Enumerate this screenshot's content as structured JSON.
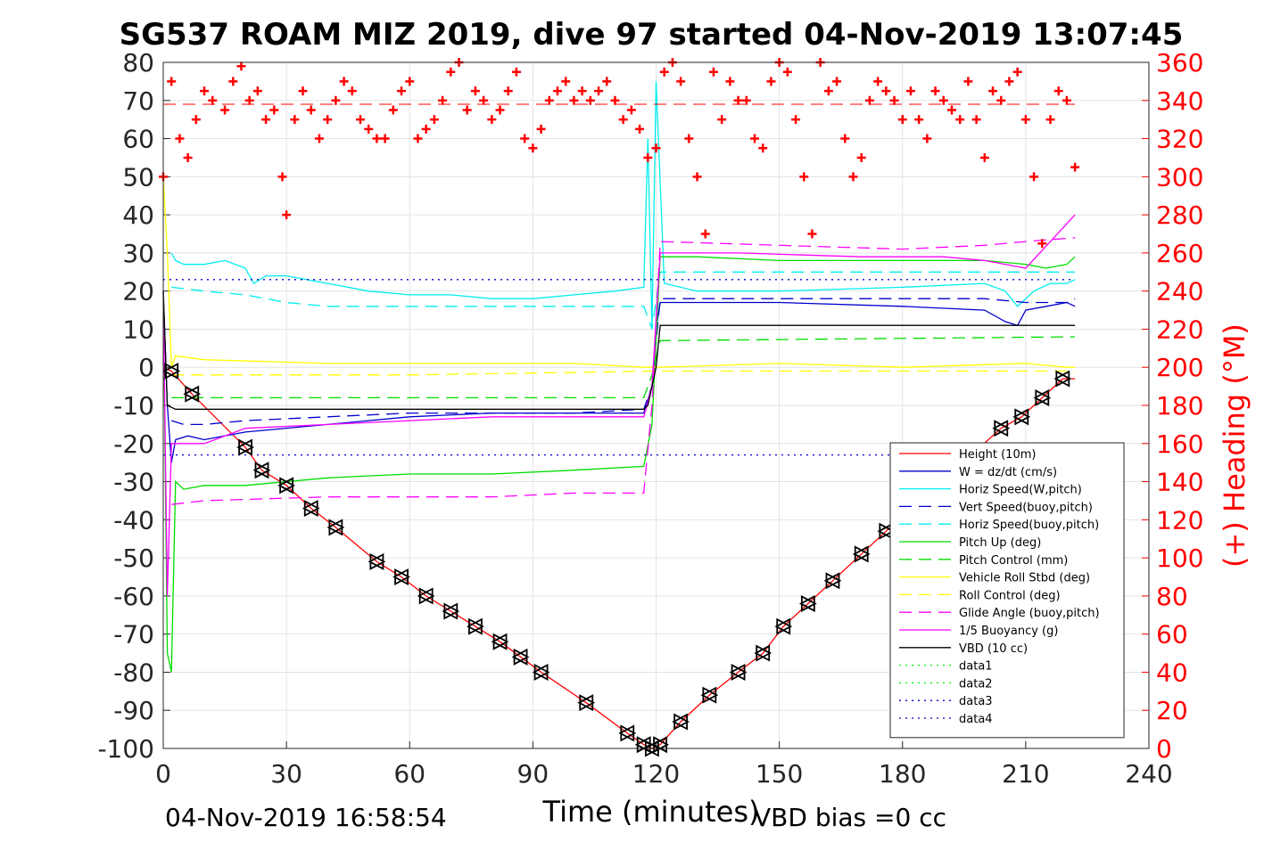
{
  "chart_data": {
    "type": "line",
    "title": "SG537 ROAM MIZ 2019, dive 97 started 04-Nov-2019 13:07:45",
    "xlabel": "Time (minutes)",
    "ylabel_right": "(+) Heading (°M)",
    "xlim": [
      0,
      240
    ],
    "ylim": [
      -100,
      80
    ],
    "ylim_right": [
      0,
      360
    ],
    "x_ticks": [
      0,
      30,
      60,
      90,
      120,
      150,
      180,
      210,
      240
    ],
    "y_ticks": [
      80,
      70,
      60,
      50,
      40,
      30,
      20,
      10,
      0,
      -10,
      -20,
      -30,
      -40,
      -50,
      -60,
      -70,
      -80,
      -90,
      -100
    ],
    "y_ticks_right": [
      360,
      340,
      320,
      300,
      280,
      260,
      240,
      220,
      200,
      180,
      160,
      140,
      120,
      100,
      80,
      60,
      40,
      20,
      0
    ],
    "grid": true,
    "legend_position": "bottom-right",
    "footer_left": "04-Nov-2019 16:58:54",
    "footer_right": "VBD bias =0 cc",
    "series": [
      {
        "name": "Height (10m)",
        "color": "#ff0000",
        "dash": "solid",
        "x": [
          0,
          2,
          7,
          20,
          24,
          30,
          36,
          42,
          52,
          58,
          64,
          70,
          76,
          82,
          87,
          92,
          103,
          113,
          117,
          119,
          121,
          126,
          133,
          140,
          146,
          151,
          157,
          163,
          170,
          176,
          204,
          209,
          214,
          219,
          222
        ],
        "y": [
          0,
          -1,
          -7,
          -21,
          -27,
          -31,
          -37,
          -42,
          -51,
          -55,
          -60,
          -64,
          -68,
          -72,
          -76,
          -80,
          -88,
          -96,
          -99,
          -100,
          -99,
          -93,
          -86,
          -80,
          -75,
          -68,
          -62,
          -56,
          -49,
          -43,
          -16,
          -13,
          -8,
          -3,
          -3
        ]
      },
      {
        "name": "W = dz/dt (cm/s)",
        "color": "#0000cc",
        "dash": "solid",
        "x": [
          0,
          1,
          2,
          3,
          6,
          10,
          20,
          40,
          60,
          80,
          100,
          117,
          119,
          120,
          121,
          130,
          150,
          180,
          200,
          205,
          208,
          210,
          215,
          220,
          222
        ],
        "y": [
          20,
          -10,
          -25,
          -19,
          -18,
          -19,
          -17,
          -15,
          -13,
          -12,
          -12,
          -12,
          -5,
          10,
          17,
          17,
          17,
          16,
          15,
          12,
          11,
          15,
          16,
          17,
          16
        ]
      },
      {
        "name": "Horiz Speed(W,pitch)",
        "color": "#00eeee",
        "dash": "solid",
        "x": [
          2,
          3,
          5,
          10,
          15,
          20,
          22,
          25,
          30,
          40,
          50,
          60,
          70,
          80,
          90,
          100,
          110,
          117,
          118,
          119,
          120,
          122,
          130,
          150,
          180,
          200,
          205,
          208,
          212,
          216,
          220,
          222
        ],
        "y": [
          30,
          28,
          27,
          27,
          28,
          26,
          22,
          24,
          24,
          22,
          20,
          19,
          19,
          18,
          18,
          19,
          20,
          21,
          60,
          10,
          75,
          22,
          20,
          20,
          21,
          22,
          20,
          16,
          20,
          22,
          22,
          23
        ]
      },
      {
        "name": "Vert Speed(buoy,pitch)",
        "color": "#0000cc",
        "dash": "dashed",
        "x": [
          2,
          5,
          10,
          20,
          40,
          60,
          80,
          100,
          117,
          119,
          121,
          130,
          150,
          180,
          200,
          210,
          220,
          222
        ],
        "y": [
          -14,
          -15,
          -15,
          -14,
          -13,
          -12,
          -12,
          -12,
          -11,
          -5,
          18,
          18,
          18,
          18,
          18,
          17,
          17,
          18
        ]
      },
      {
        "name": "Horiz Speed(buoy,pitch)",
        "color": "#00eeee",
        "dash": "dashed",
        "x": [
          2,
          10,
          20,
          30,
          40,
          60,
          80,
          100,
          117,
          119,
          121,
          140,
          160,
          180,
          200,
          210,
          220,
          222
        ],
        "y": [
          21,
          20,
          19,
          17,
          16,
          16,
          16,
          16,
          16,
          10,
          25,
          25,
          25,
          25,
          25,
          25,
          25,
          25
        ]
      },
      {
        "name": "Pitch Up (deg)",
        "color": "#00dd00",
        "dash": "solid",
        "x": [
          0,
          1,
          2,
          3,
          5,
          10,
          20,
          40,
          60,
          80,
          100,
          117,
          119,
          121,
          130,
          150,
          180,
          200,
          210,
          215,
          220,
          222
        ],
        "y": [
          20,
          -75,
          -80,
          -30,
          -32,
          -31,
          -31,
          -29,
          -28,
          -28,
          -27,
          -26,
          -15,
          29,
          29,
          28,
          28,
          28,
          27,
          26,
          27,
          29
        ]
      },
      {
        "name": "Pitch Control (mm)",
        "color": "#00dd00",
        "dash": "dashed",
        "x": [
          2,
          117,
          119,
          121,
          222
        ],
        "y": [
          -8,
          -8,
          -2,
          7,
          8
        ]
      },
      {
        "name": "Vehicle Roll Stbd (deg)",
        "color": "#ffff00",
        "dash": "solid",
        "x": [
          0,
          1,
          2,
          3,
          10,
          40,
          60,
          80,
          100,
          117,
          119,
          121,
          150,
          180,
          210,
          220,
          222
        ],
        "y": [
          50,
          30,
          0,
          3,
          2,
          1,
          1,
          1,
          1,
          0,
          0,
          0,
          1,
          0,
          1,
          0,
          0
        ]
      },
      {
        "name": "Roll Control (deg)",
        "color": "#ffff00",
        "dash": "dashed",
        "x": [
          2,
          60,
          120,
          222
        ],
        "y": [
          -2,
          -2,
          -1,
          -1
        ]
      },
      {
        "name": "Glide Angle (buoy,pitch)",
        "color": "#ff00ff",
        "dash": "dashed",
        "x": [
          2,
          10,
          40,
          60,
          80,
          100,
          117,
          119,
          121,
          150,
          180,
          200,
          210,
          222
        ],
        "y": [
          -36,
          -35,
          -34,
          -34,
          -34,
          -33,
          -33,
          -10,
          33,
          32,
          31,
          32,
          33,
          34
        ]
      },
      {
        "name": "1/5 Buoyancy (g)",
        "color": "#ff00ff",
        "dash": "solid",
        "x": [
          0,
          1,
          2,
          5,
          10,
          20,
          40,
          60,
          80,
          100,
          117,
          119,
          121,
          140,
          170,
          190,
          200,
          210,
          222
        ],
        "y": [
          20,
          -60,
          -20,
          -20,
          -20,
          -16,
          -15,
          -14,
          -13,
          -13,
          -13,
          -5,
          30,
          30,
          29,
          29,
          28,
          26,
          40
        ]
      },
      {
        "name": "VBD (10 cc)",
        "color": "#000000",
        "dash": "solid",
        "x": [
          0,
          1,
          3,
          117,
          118,
          120,
          121,
          190,
          222
        ],
        "y": [
          20,
          -10,
          -11,
          -11,
          -10,
          0,
          11,
          11,
          11
        ]
      },
      {
        "name": "data1",
        "color": "#00ee00",
        "dash": "dotted",
        "x": [],
        "y": []
      },
      {
        "name": "data2",
        "color": "#00ee00",
        "dash": "dotted",
        "x": [],
        "y": []
      },
      {
        "name": "data3",
        "color": "#0000cc",
        "dash": "dotted",
        "x": [
          0,
          222
        ],
        "y": [
          23,
          23
        ]
      },
      {
        "name": "data4",
        "color": "#0000cc",
        "dash": "dotted",
        "x": [
          0,
          222
        ],
        "y": [
          -23,
          -23
        ]
      }
    ],
    "heading": {
      "color": "#ff0000",
      "marker": "+",
      "axis": "right",
      "reference_line": 338,
      "x": [
        0,
        2,
        4,
        6,
        8,
        10,
        12,
        15,
        17,
        19,
        21,
        23,
        25,
        27,
        29,
        30,
        32,
        34,
        36,
        38,
        40,
        42,
        44,
        46,
        48,
        50,
        52,
        54,
        56,
        58,
        60,
        62,
        64,
        66,
        68,
        70,
        72,
        74,
        76,
        78,
        80,
        82,
        84,
        86,
        88,
        90,
        92,
        94,
        96,
        98,
        100,
        102,
        104,
        106,
        108,
        110,
        112,
        114,
        116,
        118,
        120,
        122,
        124,
        126,
        128,
        130,
        132,
        134,
        136,
        138,
        140,
        142,
        144,
        146,
        148,
        150,
        152,
        154,
        156,
        158,
        160,
        162,
        164,
        166,
        168,
        170,
        172,
        174,
        176,
        178,
        180,
        182,
        184,
        186,
        188,
        190,
        192,
        194,
        196,
        198,
        200,
        202,
        204,
        206,
        208,
        210,
        212,
        214,
        216,
        218,
        220,
        222
      ],
      "y": [
        300,
        350,
        320,
        310,
        330,
        345,
        340,
        335,
        350,
        358,
        340,
        345,
        330,
        335,
        300,
        280,
        330,
        345,
        335,
        320,
        330,
        340,
        350,
        345,
        330,
        325,
        320,
        320,
        335,
        345,
        350,
        320,
        325,
        330,
        340,
        355,
        360,
        335,
        345,
        340,
        330,
        335,
        345,
        355,
        320,
        315,
        325,
        340,
        345,
        350,
        340,
        345,
        340,
        345,
        350,
        340,
        330,
        335,
        325,
        310,
        315,
        355,
        360,
        350,
        320,
        300,
        270,
        355,
        330,
        350,
        340,
        340,
        320,
        315,
        350,
        360,
        355,
        330,
        300,
        270,
        360,
        345,
        350,
        320,
        300,
        310,
        340,
        350,
        345,
        340,
        330,
        345,
        330,
        320,
        345,
        340,
        335,
        330,
        350,
        330,
        310,
        345,
        340,
        350,
        355,
        330,
        300,
        265,
        330,
        345,
        340,
        305
      ]
    },
    "markers": {
      "description_free": true,
      "x": [
        2,
        7,
        20,
        24,
        30,
        36,
        42,
        52,
        58,
        64,
        70,
        76,
        82,
        87,
        92,
        103,
        113,
        117,
        119,
        121,
        126,
        133,
        140,
        146,
        151,
        157,
        163,
        170,
        176,
        204,
        209,
        214,
        219
      ],
      "y": [
        -1,
        -7,
        -21,
        -27,
        -31,
        -37,
        -42,
        -51,
        -55,
        -60,
        -64,
        -68,
        -72,
        -76,
        -80,
        -88,
        -96,
        -99,
        -100,
        -99,
        -93,
        -86,
        -80,
        -75,
        -68,
        -62,
        -56,
        -49,
        -43,
        -16,
        -13,
        -8,
        -3
      ]
    }
  }
}
